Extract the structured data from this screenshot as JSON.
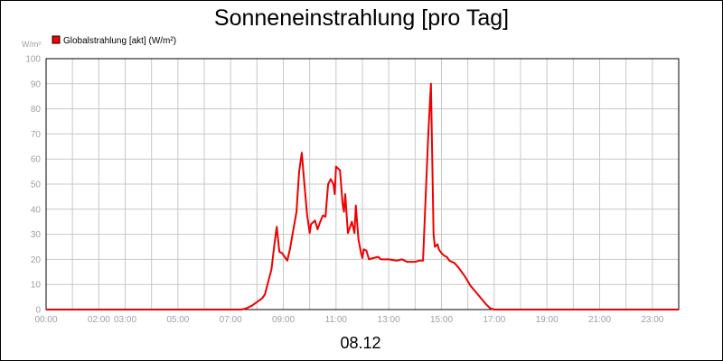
{
  "chart_data": {
    "type": "line",
    "title": "Sonneneinstrahlung [pro Tag]",
    "ylabel": "W/m²",
    "xlabel": "08.12",
    "legend": {
      "placement": "top-left",
      "color": "#ff0000"
    },
    "series_color": "#ee0000",
    "grid": true,
    "xlim": [
      0,
      24
    ],
    "ylim": [
      0,
      100
    ],
    "yticks": [
      0,
      10,
      20,
      30,
      40,
      50,
      60,
      70,
      80,
      90,
      100
    ],
    "xticks": [
      {
        "value": 0,
        "label": "00:00"
      },
      {
        "value": 2,
        "label": "02:00"
      },
      {
        "value": 3,
        "label": "03:00"
      },
      {
        "value": 5,
        "label": "05:00"
      },
      {
        "value": 7,
        "label": "07:00"
      },
      {
        "value": 9,
        "label": "09:00"
      },
      {
        "value": 11,
        "label": "11:00"
      },
      {
        "value": 13,
        "label": "13:00"
      },
      {
        "value": 15,
        "label": "15:00"
      },
      {
        "value": 17,
        "label": "17:00"
      },
      {
        "value": 19,
        "label": "19:00"
      },
      {
        "value": 21,
        "label": "21:00"
      },
      {
        "value": 23,
        "label": "23:00"
      }
    ],
    "series": [
      {
        "name": "Globalstrahlung [akt] (W/m²)",
        "points": [
          [
            0,
            0
          ],
          [
            7.4,
            0
          ],
          [
            7.6,
            0.5
          ],
          [
            7.8,
            1.5
          ],
          [
            8.0,
            3
          ],
          [
            8.2,
            4.5
          ],
          [
            8.3,
            6
          ],
          [
            8.4,
            10
          ],
          [
            8.55,
            16
          ],
          [
            8.65,
            25
          ],
          [
            8.75,
            33
          ],
          [
            8.85,
            23
          ],
          [
            8.95,
            22.5
          ],
          [
            9.05,
            21
          ],
          [
            9.15,
            19.5
          ],
          [
            9.25,
            24
          ],
          [
            9.35,
            30
          ],
          [
            9.5,
            39
          ],
          [
            9.6,
            55
          ],
          [
            9.7,
            62.5
          ],
          [
            9.8,
            50
          ],
          [
            9.9,
            38
          ],
          [
            10.0,
            30.5
          ],
          [
            10.05,
            34
          ],
          [
            10.2,
            35.5
          ],
          [
            10.3,
            32
          ],
          [
            10.4,
            35
          ],
          [
            10.5,
            37.5
          ],
          [
            10.6,
            37
          ],
          [
            10.7,
            50
          ],
          [
            10.8,
            52
          ],
          [
            10.9,
            50
          ],
          [
            10.95,
            46
          ],
          [
            11.0,
            57
          ],
          [
            11.15,
            55.5
          ],
          [
            11.25,
            42
          ],
          [
            11.3,
            39
          ],
          [
            11.35,
            46
          ],
          [
            11.4,
            38
          ],
          [
            11.45,
            30.5
          ],
          [
            11.5,
            32
          ],
          [
            11.6,
            35
          ],
          [
            11.7,
            30.5
          ],
          [
            11.75,
            41.5
          ],
          [
            11.85,
            28
          ],
          [
            11.95,
            22.5
          ],
          [
            12.0,
            20.5
          ],
          [
            12.05,
            24
          ],
          [
            12.15,
            23.5
          ],
          [
            12.25,
            20
          ],
          [
            12.4,
            20.5
          ],
          [
            12.6,
            21
          ],
          [
            12.7,
            20
          ],
          [
            13.0,
            20
          ],
          [
            13.3,
            19.5
          ],
          [
            13.5,
            20
          ],
          [
            13.7,
            19
          ],
          [
            14.0,
            19
          ],
          [
            14.15,
            19.5
          ],
          [
            14.3,
            19.5
          ],
          [
            14.4,
            45
          ],
          [
            14.5,
            70
          ],
          [
            14.6,
            90
          ],
          [
            14.65,
            60
          ],
          [
            14.7,
            30
          ],
          [
            14.75,
            25
          ],
          [
            14.85,
            26
          ],
          [
            14.9,
            24
          ],
          [
            15.0,
            22.5
          ],
          [
            15.1,
            21.5
          ],
          [
            15.2,
            21
          ],
          [
            15.3,
            19.5
          ],
          [
            15.5,
            18.5
          ],
          [
            15.7,
            16
          ],
          [
            15.9,
            13
          ],
          [
            16.1,
            9.5
          ],
          [
            16.3,
            7
          ],
          [
            16.5,
            4.5
          ],
          [
            16.7,
            2
          ],
          [
            16.85,
            0.5
          ],
          [
            17.0,
            0
          ],
          [
            24,
            0
          ]
        ]
      }
    ]
  }
}
